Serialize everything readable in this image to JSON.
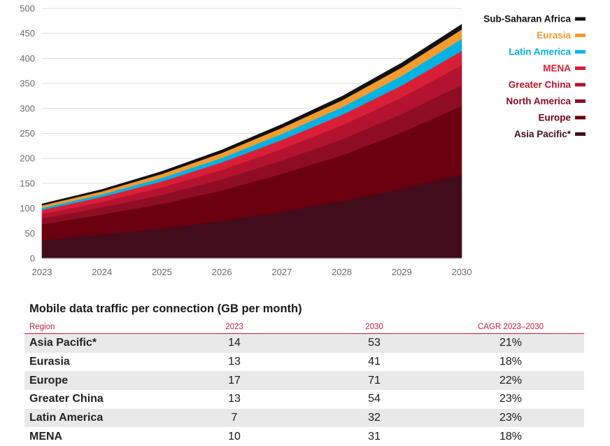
{
  "chart_data": {
    "type": "area",
    "stacked": true,
    "x": [
      "2023",
      "2024",
      "2025",
      "2026",
      "2027",
      "2028",
      "2029",
      "2030"
    ],
    "yticks": [
      0,
      50,
      100,
      150,
      200,
      250,
      300,
      350,
      400,
      450,
      500
    ],
    "ylim": [
      0,
      500
    ],
    "grid": true,
    "legend_position": "right",
    "series": [
      {
        "name": "Asia Pacific*",
        "color": "#420c1c",
        "values": [
          36,
          48,
          60,
          75,
          93,
          115,
          139,
          168
        ]
      },
      {
        "name": "Europe",
        "color": "#6b0010",
        "values": [
          32,
          40,
          49,
          61,
          76,
          91,
          113,
          137
        ]
      },
      {
        "name": "North America",
        "color": "#8e0d24",
        "values": [
          12,
          14,
          18,
          22,
          27,
          32,
          37,
          42
        ]
      },
      {
        "name": "Greater China",
        "color": "#b3132f",
        "values": [
          9,
          11,
          15,
          19,
          23,
          28,
          33,
          40
        ]
      },
      {
        "name": "MENA",
        "color": "#d91f37",
        "values": [
          8,
          10,
          12,
          15,
          18,
          21,
          24,
          28
        ]
      },
      {
        "name": "Latin America",
        "color": "#00b3e3",
        "values": [
          4,
          5,
          7,
          9,
          12,
          15,
          19,
          24
        ]
      },
      {
        "name": "Eurasia",
        "color": "#f29b30",
        "values": [
          5,
          6,
          8,
          10,
          12,
          14,
          17,
          19
        ]
      },
      {
        "name": "Sub-Saharan Africa",
        "color": "#111111",
        "values": [
          3,
          4,
          5,
          6,
          7,
          8,
          9,
          10
        ]
      }
    ]
  },
  "table": {
    "title": "Mobile data traffic per connection (GB per month)",
    "headers": [
      "Region",
      "2023",
      "2030",
      "CAGR 2023–2030"
    ],
    "rows": [
      [
        "Asia Pacific*",
        "14",
        "53",
        "21%"
      ],
      [
        "Eurasia",
        "13",
        "41",
        "18%"
      ],
      [
        "Europe",
        "17",
        "71",
        "22%"
      ],
      [
        "Greater China",
        "13",
        "54",
        "23%"
      ],
      [
        "Latin America",
        "7",
        "32",
        "23%"
      ],
      [
        "MENA",
        "10",
        "31",
        "18%"
      ]
    ]
  }
}
